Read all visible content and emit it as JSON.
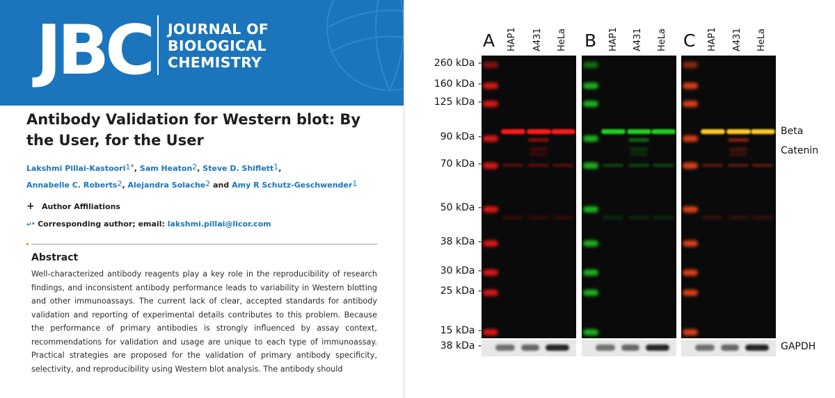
{
  "journal": {
    "logo": "JBC",
    "name_lines": [
      "JOURNAL OF",
      "BIOLOGICAL",
      "CHEMISTRY"
    ],
    "banner_color": "#1b75bc"
  },
  "article": {
    "title": "Antibody Validation for Western blot: By the User, for the User",
    "authors_line1": [
      {
        "name": "Lakshmi Pillai-Kastoori",
        "sup": "1*"
      },
      {
        "name": "Sam Heaton",
        "sup": "2"
      },
      {
        "name": "Steve D. Shiflett",
        "sup": "1"
      }
    ],
    "authors_line2": [
      {
        "name": "Annabelle C. Roberts",
        "sup": "2"
      },
      {
        "name": "Alejandra Solache",
        "sup": "2"
      },
      {
        "name": "Amy R Schutz-Geschwender",
        "sup": "1"
      }
    ],
    "and_word": "and",
    "affiliations_label": "Author Affiliations",
    "affiliations_toggle": "+",
    "corresponding_prefix": "Corresponding author; email:",
    "corresponding_email": "lakshmi.pillai@licor.com",
    "abstract_heading": "Abstract",
    "abstract_text": "Well-characterized antibody reagents play a key role in the reproducibility of research findings, and inconsistent antibody performance leads to variability in Western blotting and other immunoassays. The current lack of clear, accepted standards for antibody validation and reporting of experimental details contributes to this problem. Because the performance of primary antibodies is strongly influenced by assay context, recommendations for validation and usage are unique to each type of immunoassay. Practical strategies are proposed for the validation of primary antibody specificity, selectivity, and reproducibility using Western blot analysis. The antibody should"
  },
  "figure": {
    "panels": [
      {
        "letter": "A",
        "lanes": [
          "HAP1",
          "A431",
          "HeLa"
        ],
        "channel": "red"
      },
      {
        "letter": "B",
        "lanes": [
          "HAP1",
          "A431",
          "HeLa"
        ],
        "channel": "green"
      },
      {
        "letter": "C",
        "lanes": [
          "HAP1",
          "A431",
          "HeLa"
        ],
        "channel": "merge"
      }
    ],
    "markers": [
      "260 kDa -",
      "160 kDa -",
      "125 kDa -",
      "90 kDa -",
      "70 kDa -",
      "50 kDa -",
      "38 kDa -",
      "30 kDa -",
      "25 kDa -",
      "15 kDa -"
    ],
    "gapdh_marker": "38 kDa -",
    "target_label_lines": [
      "Beta",
      "Catenin"
    ],
    "loading_control_label": "GAPDH",
    "colors": {
      "red": "#ff1a1a",
      "green": "#22d022",
      "merge": "#ffcc22"
    }
  }
}
